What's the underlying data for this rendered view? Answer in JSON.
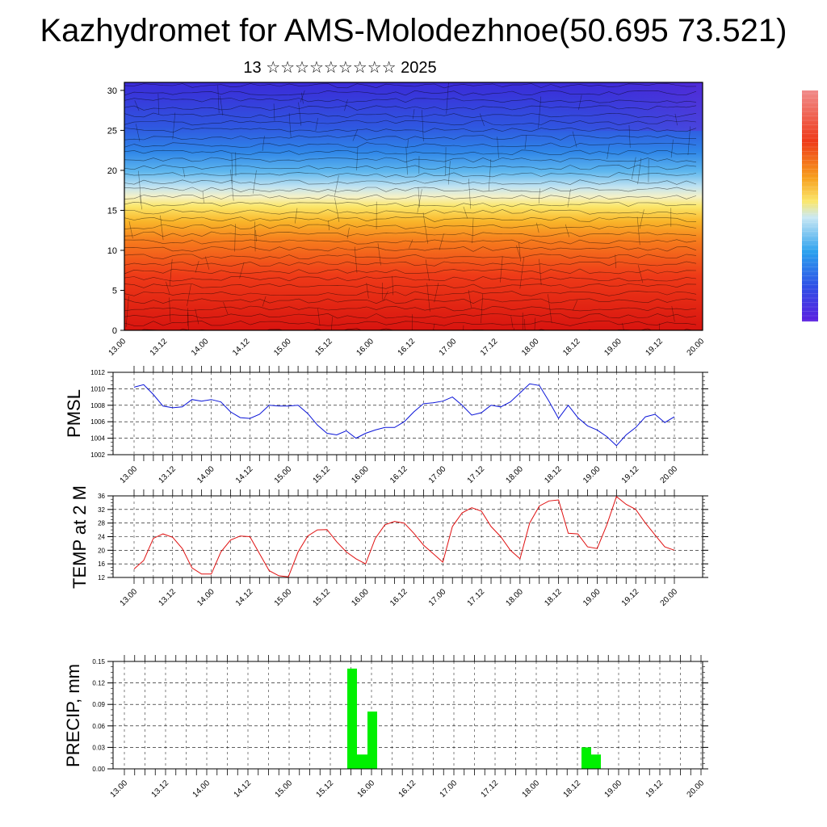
{
  "page": {
    "title": "Kazhydromet for AMS-Molodezhnoe(50.695 73.521)",
    "subtitle": "13 ☆☆☆☆☆☆☆☆☆ 2025"
  },
  "time_ticks": [
    "13.00",
    "13.12",
    "14.00",
    "14.12",
    "15.00",
    "15.12",
    "16.00",
    "16.12",
    "17.00",
    "17.12",
    "18.00",
    "18.12",
    "19.00",
    "19.12",
    "20.00"
  ],
  "chart_data": [
    {
      "type": "heatmap",
      "title": "",
      "xlabel": "",
      "ylabel": "",
      "ylim": [
        0,
        31
      ],
      "yticks": [
        0,
        5,
        10,
        15,
        20,
        25,
        30
      ],
      "description_of_field": "temperature-like colour field, warm (red) near 0-15, yellow band at ~15-17, blue above 18",
      "colors": {
        "high": "#e8201a",
        "mid_warm": "#f7a01e",
        "band": "#fbe76b",
        "light_blue": "#bfe2f1",
        "blue": "#2f6fe0",
        "deep": "#3b1fd8"
      }
    },
    {
      "type": "line",
      "title": "",
      "xlabel": "",
      "ylabel": "PMSL",
      "ylim": [
        1002,
        1012
      ],
      "yticks": [
        1002,
        1004,
        1006,
        1008,
        1010,
        1012
      ],
      "color": "#0a14d8",
      "series": [
        {
          "values": [
            1010.2,
            1010.5,
            1009.3,
            1007.9,
            1007.7,
            1007.8,
            1008.7,
            1008.5,
            1008.7,
            1008.4,
            1007.2,
            1006.5,
            1006.4,
            1006.9,
            1008.0,
            1007.9,
            1007.9,
            1008.0,
            1007.0,
            1005.6,
            1004.6,
            1004.4,
            1004.9,
            1004.0,
            1004.6,
            1005.0,
            1005.3,
            1005.3,
            1006.0,
            1007.2,
            1008.2,
            1008.3,
            1008.5,
            1009.0,
            1008.0,
            1006.8,
            1007.1,
            1008.0,
            1007.8,
            1008.4,
            1009.5,
            1010.6,
            1010.4,
            1008.5,
            1006.4,
            1008.0,
            1006.5,
            1005.5,
            1005.0,
            1004.2,
            1003.1,
            1004.4,
            1005.3,
            1006.6,
            1006.9,
            1005.9,
            1006.6
          ]
        }
      ]
    },
    {
      "type": "line",
      "title": "",
      "xlabel": "",
      "ylabel": "TEMP at 2 M",
      "ylim": [
        12,
        36
      ],
      "yticks": [
        12,
        16,
        20,
        24,
        28,
        32,
        36
      ],
      "color": "#e01010",
      "series": [
        {
          "values": [
            14.5,
            17.0,
            23.5,
            24.8,
            23.8,
            20.5,
            14.8,
            13.0,
            13.0,
            19.5,
            23.0,
            24.2,
            24.0,
            19.0,
            14.0,
            12.5,
            12.2,
            19.5,
            24.2,
            26.0,
            26.1,
            22.5,
            19.5,
            17.5,
            16.0,
            23.5,
            27.5,
            28.5,
            28.0,
            25.0,
            21.5,
            19.0,
            16.5,
            27.0,
            31.0,
            32.5,
            31.5,
            27.0,
            24.0,
            20.0,
            17.5,
            28.0,
            33.0,
            34.5,
            34.8,
            25.0,
            24.8,
            21.0,
            20.5,
            27.5,
            35.8,
            33.5,
            32.0,
            28.0,
            24.5,
            21.0,
            20.0
          ]
        }
      ]
    },
    {
      "type": "bar",
      "title": "",
      "xlabel": "",
      "ylabel": "PRECIP, mm",
      "ylim": [
        0,
        0.15
      ],
      "yticks": [
        "0.00",
        "0.03",
        "0.06",
        "0.09",
        "0.12",
        "0.15"
      ],
      "color": "#00f000",
      "bars": [
        {
          "x": "15.18",
          "value": 0.14
        },
        {
          "x": "15.21",
          "value": 0.02
        },
        {
          "x": "16.00",
          "value": 0.02
        },
        {
          "x": "15.21b",
          "value": 0.08
        },
        {
          "x": "18.15",
          "value": 0.03
        },
        {
          "x": "18.18",
          "value": 0.02
        }
      ]
    }
  ]
}
